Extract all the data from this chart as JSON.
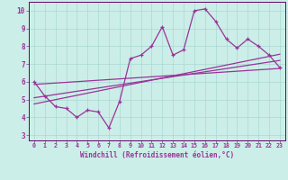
{
  "scatter_x": [
    0,
    1,
    2,
    3,
    4,
    5,
    6,
    7,
    8,
    9,
    10,
    11,
    12,
    13,
    14,
    15,
    16,
    17,
    18,
    19,
    20,
    21,
    22,
    23
  ],
  "scatter_y": [
    6.0,
    5.2,
    4.6,
    4.5,
    4.0,
    4.4,
    4.3,
    3.4,
    4.9,
    7.3,
    7.5,
    8.0,
    9.1,
    7.5,
    7.8,
    10.0,
    10.1,
    9.4,
    8.4,
    7.9,
    8.4,
    8.0,
    7.5,
    6.8
  ],
  "line1_x": [
    0,
    23
  ],
  "line1_y": [
    5.85,
    6.75
  ],
  "line2_x": [
    0,
    23
  ],
  "line2_y": [
    4.75,
    7.55
  ],
  "line3_x": [
    0,
    23
  ],
  "line3_y": [
    5.1,
    7.2
  ],
  "bg_color": "#cceee8",
  "plot_bg_color": "#cceee8",
  "line_color": "#993399",
  "grid_color": "#aad8d3",
  "axis_color": "#660066",
  "xlabel": "Windchill (Refroidissement éolien,°C)",
  "xlim": [
    -0.5,
    23.5
  ],
  "ylim": [
    2.7,
    10.5
  ],
  "yticks": [
    3,
    4,
    5,
    6,
    7,
    8,
    9,
    10
  ],
  "xticks": [
    0,
    1,
    2,
    3,
    4,
    5,
    6,
    7,
    8,
    9,
    10,
    11,
    12,
    13,
    14,
    15,
    16,
    17,
    18,
    19,
    20,
    21,
    22,
    23
  ],
  "xlabel_fontsize": 5.5,
  "tick_fontsize_x": 4.8,
  "tick_fontsize_y": 5.5
}
